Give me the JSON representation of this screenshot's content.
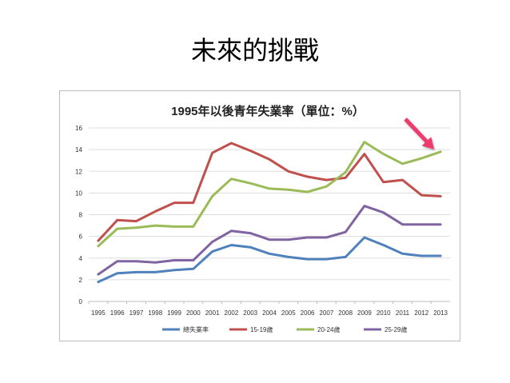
{
  "slide": {
    "title": "未來的挑戰"
  },
  "chart_data": {
    "type": "line",
    "title": "1995年以後青年失業率（單位：%）",
    "xlabel": "",
    "ylabel": "",
    "x": [
      "1995",
      "1996",
      "1997",
      "1998",
      "1999",
      "2000",
      "2001",
      "2002",
      "2003",
      "2004",
      "2005",
      "2006",
      "2007",
      "2008",
      "2009",
      "2010",
      "2011",
      "2012",
      "2013"
    ],
    "ylim": [
      0,
      16
    ],
    "yticks": [
      0,
      2,
      4,
      6,
      8,
      10,
      12,
      14,
      16
    ],
    "grid": true,
    "legend": "bottom",
    "series": [
      {
        "name": "總失業率",
        "color": "#4f81bd",
        "values": [
          1.8,
          2.6,
          2.7,
          2.7,
          2.9,
          3.0,
          4.6,
          5.2,
          5.0,
          4.4,
          4.1,
          3.9,
          3.9,
          4.1,
          5.9,
          5.2,
          4.4,
          4.2,
          4.2
        ]
      },
      {
        "name": "15-19歲",
        "color": "#c0504d",
        "values": [
          5.6,
          7.5,
          7.4,
          8.3,
          9.1,
          9.1,
          13.7,
          14.6,
          13.9,
          13.1,
          12.0,
          11.5,
          11.2,
          11.4,
          13.6,
          11.0,
          11.2,
          9.8,
          9.7
        ]
      },
      {
        "name": "20-24歲",
        "color": "#9bbb59",
        "values": [
          5.1,
          6.7,
          6.8,
          7.0,
          6.9,
          6.9,
          9.7,
          11.3,
          10.9,
          10.4,
          10.3,
          10.1,
          10.6,
          11.9,
          14.7,
          13.6,
          12.7,
          13.2,
          13.8
        ]
      },
      {
        "name": "25-29歲",
        "color": "#8064a2",
        "values": [
          2.5,
          3.7,
          3.7,
          3.6,
          3.8,
          3.8,
          5.5,
          6.5,
          6.3,
          5.7,
          5.7,
          5.9,
          5.9,
          6.4,
          8.8,
          8.2,
          7.1,
          7.1,
          7.1
        ]
      }
    ],
    "annotation": {
      "type": "arrow",
      "color": "#ee3a6e",
      "target_series": "20-24歲",
      "target_x": "2013"
    }
  }
}
